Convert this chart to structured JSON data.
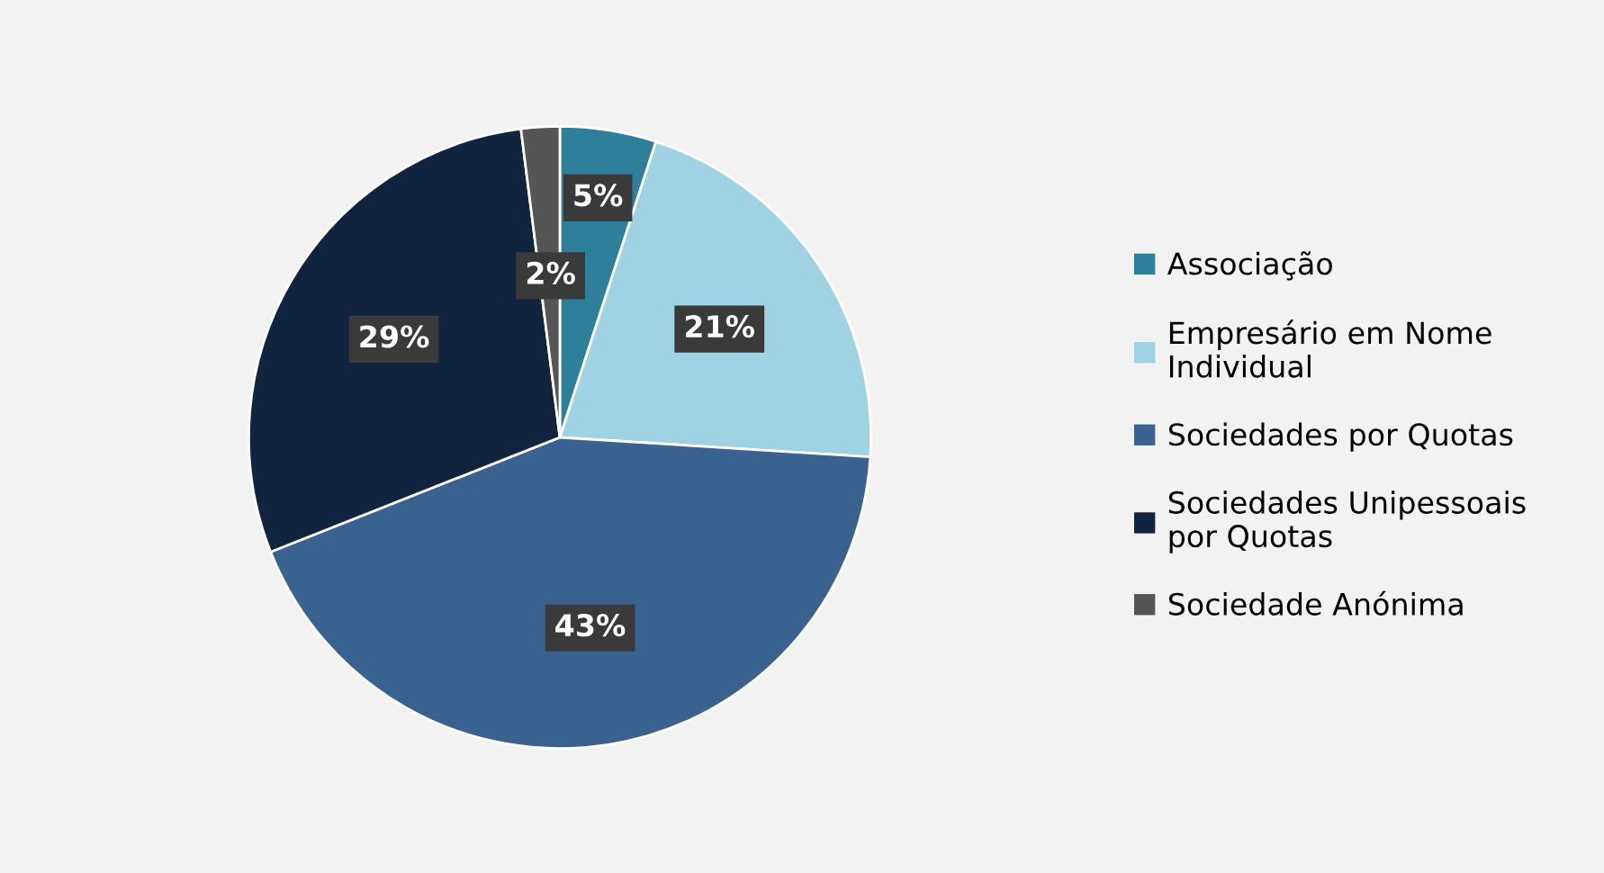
{
  "chart_data": {
    "type": "pie",
    "categories": [
      "Associação",
      "Empresário em Nome\nIndividual",
      "Sociedades por Quotas",
      "Sociedades Unipessoais\npor Quotas",
      "Sociedade Anónima"
    ],
    "values": [
      5,
      21,
      43,
      29,
      2
    ],
    "colors": [
      "#2e7f9a",
      "#9fd3e4",
      "#3a6291",
      "#11243f",
      "#555555"
    ],
    "value_labels": [
      "5%",
      "21%",
      "43%",
      "29%",
      "2%"
    ],
    "legend": "right"
  }
}
